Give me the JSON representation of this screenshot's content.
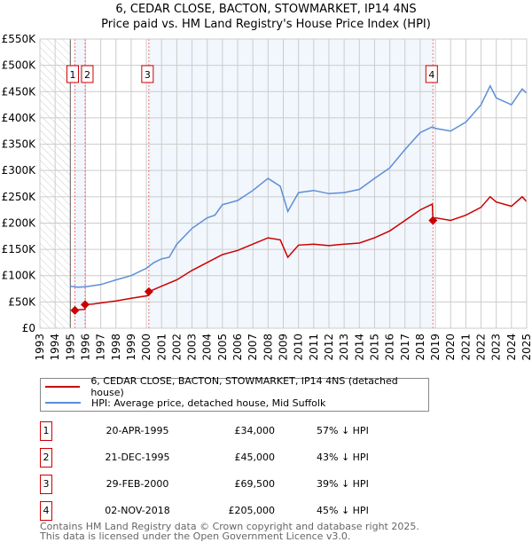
{
  "chart_data": {
    "type": "line",
    "title": "6, CEDAR CLOSE, BACTON, STOWMARKET, IP14 4NS",
    "subtitle": "Price paid vs. HM Land Registry's House Price Index (HPI)",
    "xlim": [
      1993,
      2025
    ],
    "ylim": [
      0,
      550000
    ],
    "x_ticks": [
      "1993",
      "1994",
      "1995",
      "1996",
      "1997",
      "1998",
      "1999",
      "2000",
      "2001",
      "2002",
      "2003",
      "2004",
      "2005",
      "2006",
      "2007",
      "2008",
      "2009",
      "2010",
      "2011",
      "2012",
      "2013",
      "2014",
      "2015",
      "2016",
      "2017",
      "2018",
      "2019",
      "2020",
      "2021",
      "2022",
      "2023",
      "2024",
      "2025"
    ],
    "y_ticks": [
      {
        "value": 0,
        "label": "£0"
      },
      {
        "value": 50000,
        "label": "£50K"
      },
      {
        "value": 100000,
        "label": "£100K"
      },
      {
        "value": 150000,
        "label": "£150K"
      },
      {
        "value": 200000,
        "label": "£200K"
      },
      {
        "value": 250000,
        "label": "£250K"
      },
      {
        "value": 300000,
        "label": "£300K"
      },
      {
        "value": 350000,
        "label": "£350K"
      },
      {
        "value": 400000,
        "label": "£400K"
      },
      {
        "value": 450000,
        "label": "£450K"
      },
      {
        "value": 500000,
        "label": "£500K"
      },
      {
        "value": 550000,
        "label": "£550K"
      }
    ],
    "grid": true,
    "series": [
      {
        "name": "6, CEDAR CLOSE, BACTON, STOWMARKET, IP14 4NS (detached house)",
        "color": "#cc0000",
        "x": [
          1995.3,
          1995.5,
          1995.96,
          1995.97,
          1996.5,
          1997,
          1998,
          1999,
          2000.1,
          2000.16,
          2001,
          2002,
          2003,
          2004,
          2005,
          2006,
          2007,
          2008,
          2008.8,
          2009.3,
          2010,
          2011,
          2012,
          2013,
          2014,
          2015,
          2016,
          2017,
          2018,
          2018.8,
          2018.84,
          2019,
          2020,
          2021,
          2022,
          2022.6,
          2023,
          2024,
          2024.7,
          2025
        ],
        "y": [
          34000,
          35000,
          36000,
          45000,
          46000,
          48000,
          52000,
          57000,
          62000,
          69500,
          80000,
          92000,
          110000,
          125000,
          140000,
          148000,
          160000,
          172000,
          168000,
          135000,
          158000,
          160000,
          157000,
          160000,
          162000,
          172000,
          185000,
          205000,
          225000,
          236000,
          205000,
          210000,
          205000,
          215000,
          230000,
          250000,
          240000,
          232000,
          250000,
          241000
        ]
      },
      {
        "name": "HPI: Average price, detached house, Mid Suffolk",
        "color": "#5b8fd6",
        "x": [
          1995,
          1995.5,
          1996,
          1997,
          1998,
          1999,
          2000,
          2000.5,
          2001,
          2001.5,
          2002,
          2003,
          2004,
          2004.5,
          2005,
          2006,
          2007,
          2008,
          2008.8,
          2009.3,
          2010,
          2011,
          2012,
          2013,
          2014,
          2015,
          2016,
          2017,
          2018,
          2018.8,
          2019,
          2020,
          2021,
          2022,
          2022.6,
          2023,
          2024,
          2024.7,
          2025
        ],
        "y": [
          80000,
          78000,
          79000,
          83000,
          92000,
          100000,
          114000,
          125000,
          132000,
          135000,
          160000,
          190000,
          210000,
          215000,
          235000,
          243000,
          262000,
          285000,
          270000,
          222000,
          258000,
          262000,
          256000,
          258000,
          264000,
          285000,
          305000,
          340000,
          372000,
          383000,
          380000,
          375000,
          392000,
          425000,
          461000,
          438000,
          425000,
          455000,
          447000
        ]
      }
    ],
    "sales": [
      {
        "num": "1",
        "x": 1995.3,
        "y": 34000
      },
      {
        "num": "2",
        "x": 1995.97,
        "y": 45000
      },
      {
        "num": "3",
        "x": 2000.16,
        "y": 69500
      },
      {
        "num": "4",
        "x": 2018.84,
        "y": 205000
      }
    ],
    "shaded_ranges": [
      [
        1995.3,
        1995.97
      ],
      [
        2000.16,
        2018.84
      ]
    ],
    "hatched_range": [
      1993,
      1995
    ]
  },
  "legend": {
    "property": "6, CEDAR CLOSE, BACTON, STOWMARKET, IP14 4NS (detached house)",
    "hpi": "HPI: Average price, detached house, Mid Suffolk"
  },
  "table": [
    {
      "num": "1",
      "date": "20-APR-1995",
      "price": "£34,000",
      "hpi": "57% ↓ HPI"
    },
    {
      "num": "2",
      "date": "21-DEC-1995",
      "price": "£45,000",
      "hpi": "43% ↓ HPI"
    },
    {
      "num": "3",
      "date": "29-FEB-2000",
      "price": "£69,500",
      "hpi": "39% ↓ HPI"
    },
    {
      "num": "4",
      "date": "02-NOV-2018",
      "price": "£205,000",
      "hpi": "45% ↓ HPI"
    }
  ],
  "footer": {
    "line1": "Contains HM Land Registry data © Crown copyright and database right 2025.",
    "line2": "This data is licensed under the Open Government Licence v3.0."
  }
}
